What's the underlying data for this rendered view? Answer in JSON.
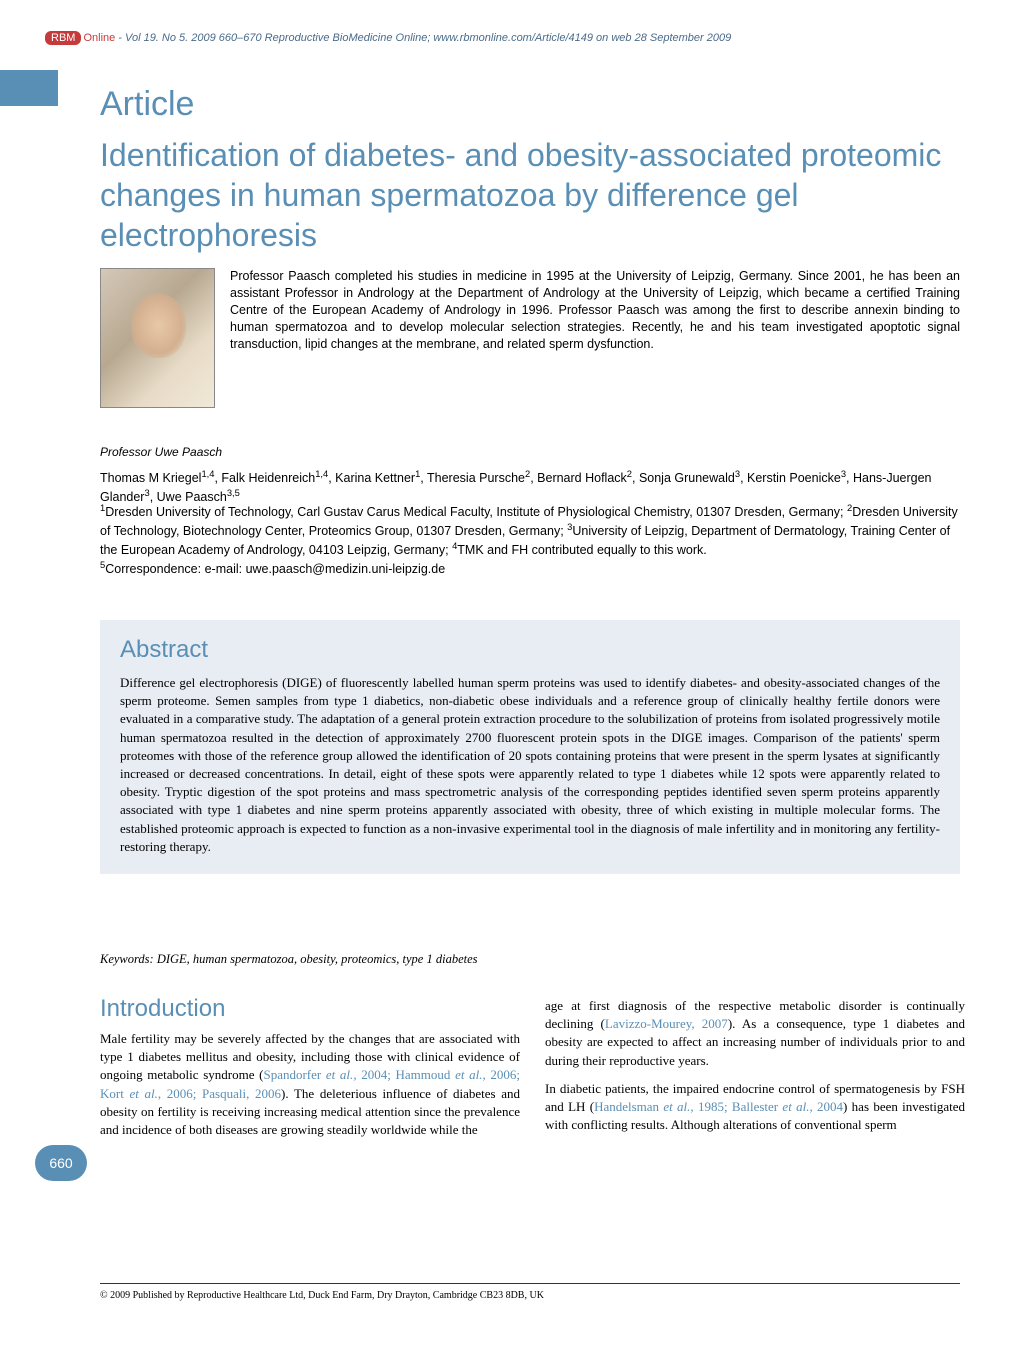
{
  "header": {
    "badge": "RBM",
    "online": "Online",
    "citation": " - Vol 19. No 5. 2009 660–670 Reproductive BioMedicine Online; www.rbmonline.com/Article/4149 on web 28 September 2009"
  },
  "article_label": "Article",
  "title": "Identification of diabetes- and obesity-associated proteomic changes in human spermatozoa by difference gel electrophoresis",
  "bio": "Professor Paasch completed his studies in medicine in 1995 at the University of Leipzig, Germany. Since 2001, he has been an assistant Professor in Andrology at the Department of Andrology at the University of Leipzig, which became a certified Training Centre of the European Academy of Andrology in 1996. Professor Paasch was among the first to describe annexin binding to human spermatozoa and to develop molecular selection strategies. Recently, he and his team investigated apoptotic signal transduction, lipid changes at the membrane, and related sperm dysfunction.",
  "photo_caption": "Professor Uwe Paasch",
  "authors_html": "Thomas M Kriegel<sup>1,4</sup>, Falk Heidenreich<sup>1,4</sup>, Karina Kettner<sup>1</sup>, Theresia Pursche<sup>2</sup>, Bernard Hoflack<sup>2</sup>, Sonja Grunewald<sup>3</sup>, Kerstin Poenicke<sup>3</sup>, Hans-Juergen Glander<sup>3</sup>, Uwe Paasch<sup>3,5</sup>",
  "affiliations_html": "<sup>1</sup>Dresden University of Technology, Carl Gustav Carus Medical Faculty, Institute of Physiological Chemistry, 01307 Dresden, Germany; <sup>2</sup>Dresden University of Technology, Biotechnology Center, Proteomics Group, 01307 Dresden, Germany; <sup>3</sup>University of Leipzig, Department of Dermatology, Training Center of the European Academy of Andrology, 04103 Leipzig, Germany; <sup>4</sup>TMK and FH contributed equally to this work.<br><sup>5</sup>Correspondence: e-mail: uwe.paasch@medizin.uni-leipzig.de",
  "abstract_heading": "Abstract",
  "abstract_text": "Difference gel electrophoresis (DIGE) of fluorescently labelled human sperm proteins was used to identify diabetes- and obesity-associated changes of the sperm proteome. Semen samples from type 1 diabetics, non-diabetic obese individuals and a reference group of clinically healthy fertile donors were evaluated in a comparative study. The adaptation of a general protein extraction procedure to the solubilization of proteins from isolated progressively motile human spermatozoa resulted in the detection of approximately 2700 fluorescent protein spots in the DIGE images. Comparison of the patients' sperm proteomes with those of the reference group allowed the identification of 20 spots containing proteins that were present in the sperm lysates at significantly increased or decreased concentrations. In detail, eight of these spots were apparently related to type 1 diabetes while 12 spots were apparently related to obesity. Tryptic digestion of the spot proteins and mass spectrometric analysis of the corresponding peptides identified seven sperm proteins apparently associated with type 1 diabetes and nine sperm proteins apparently associated with obesity, three of which existing in multiple molecular forms. The established proteomic approach is expected to function as a non-invasive experimental tool in the diagnosis of male infertility and in monitoring any fertility-restoring therapy.",
  "keywords": "Keywords: DIGE, human spermatozoa, obesity, proteomics, type 1 diabetes",
  "intro_heading": "Introduction",
  "col_left_html": "Male fertility may be severely affected by the changes that are associated with type 1 diabetes mellitus and obesity, including those with clinical evidence of ongoing metabolic syndrome (<span class='link'>Spandorfer <i>et al.</i>, 2004; Hammoud <i>et al.</i>, 2006; Kort <i>et al.</i>, 2006; Pasquali, 2006</span>). The deleterious influence of diabetes and obesity on fertility is receiving increasing medical attention since the prevalence and incidence of both diseases are growing steadily worldwide while the",
  "col_right_p1_html": "age at first diagnosis of the respective metabolic disorder is continually declining (<span class='link'>Lavizzo-Mourey, 2007</span>). As a consequence, type 1 diabetes and obesity are expected to affect an increasing number of individuals prior to and during their reproductive years.",
  "col_right_p2_html": "In diabetic patients, the impaired endocrine control of spermatogenesis by FSH and LH (<span class='link'>Handelsman <i>et al.</i>, 1985; Ballester <i>et al.</i>, 2004</span>) has been investigated with conflicting results. Although alterations of conventional sperm",
  "page_number": "660",
  "footer": "© 2009 Published by Reproductive Healthcare Ltd, Duck End Farm, Dry Drayton, Cambridge CB23 8DB, UK",
  "colors": {
    "accent_blue": "#5a8fb5",
    "badge_red": "#c53a3a",
    "abstract_bg": "#e8ecf3",
    "text": "#000000"
  }
}
